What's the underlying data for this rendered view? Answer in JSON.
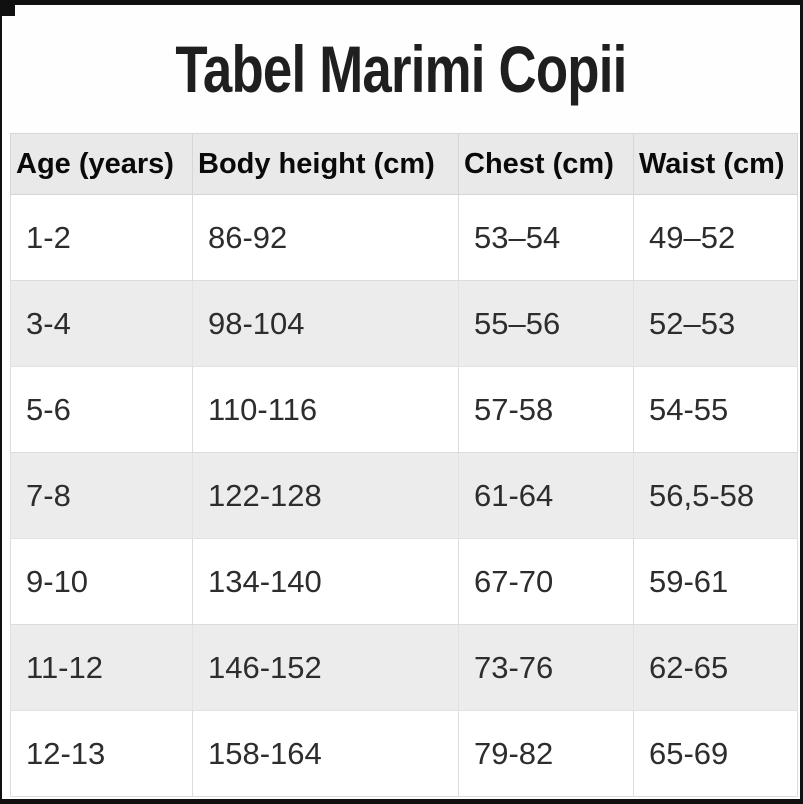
{
  "title": "Tabel Marimi Copii",
  "table": {
    "headers": [
      "Age (years)",
      "Body height (cm)",
      "Chest (cm)",
      "Waist (cm)"
    ],
    "rows": [
      [
        "1-2",
        "86-92",
        "53–54",
        "49–52"
      ],
      [
        "3-4",
        "98-104",
        "55–56",
        "52–53"
      ],
      [
        "5-6",
        "110-116",
        "57-58",
        "54-55"
      ],
      [
        "7-8",
        "122-128",
        "61-64",
        "56,5-58"
      ],
      [
        "9-10",
        "134-140",
        "67-70",
        "59-61"
      ],
      [
        "11-12",
        "146-152",
        "73-76",
        "62-65"
      ],
      [
        "12-13",
        "158-164",
        "79-82",
        "65-69"
      ]
    ]
  },
  "colors": {
    "frame": "#101010",
    "header_bg": "#e9e9e9",
    "zebra_bg": "#ececec",
    "cell_border": "#dcdcdc",
    "text": "#2d2d2d"
  }
}
